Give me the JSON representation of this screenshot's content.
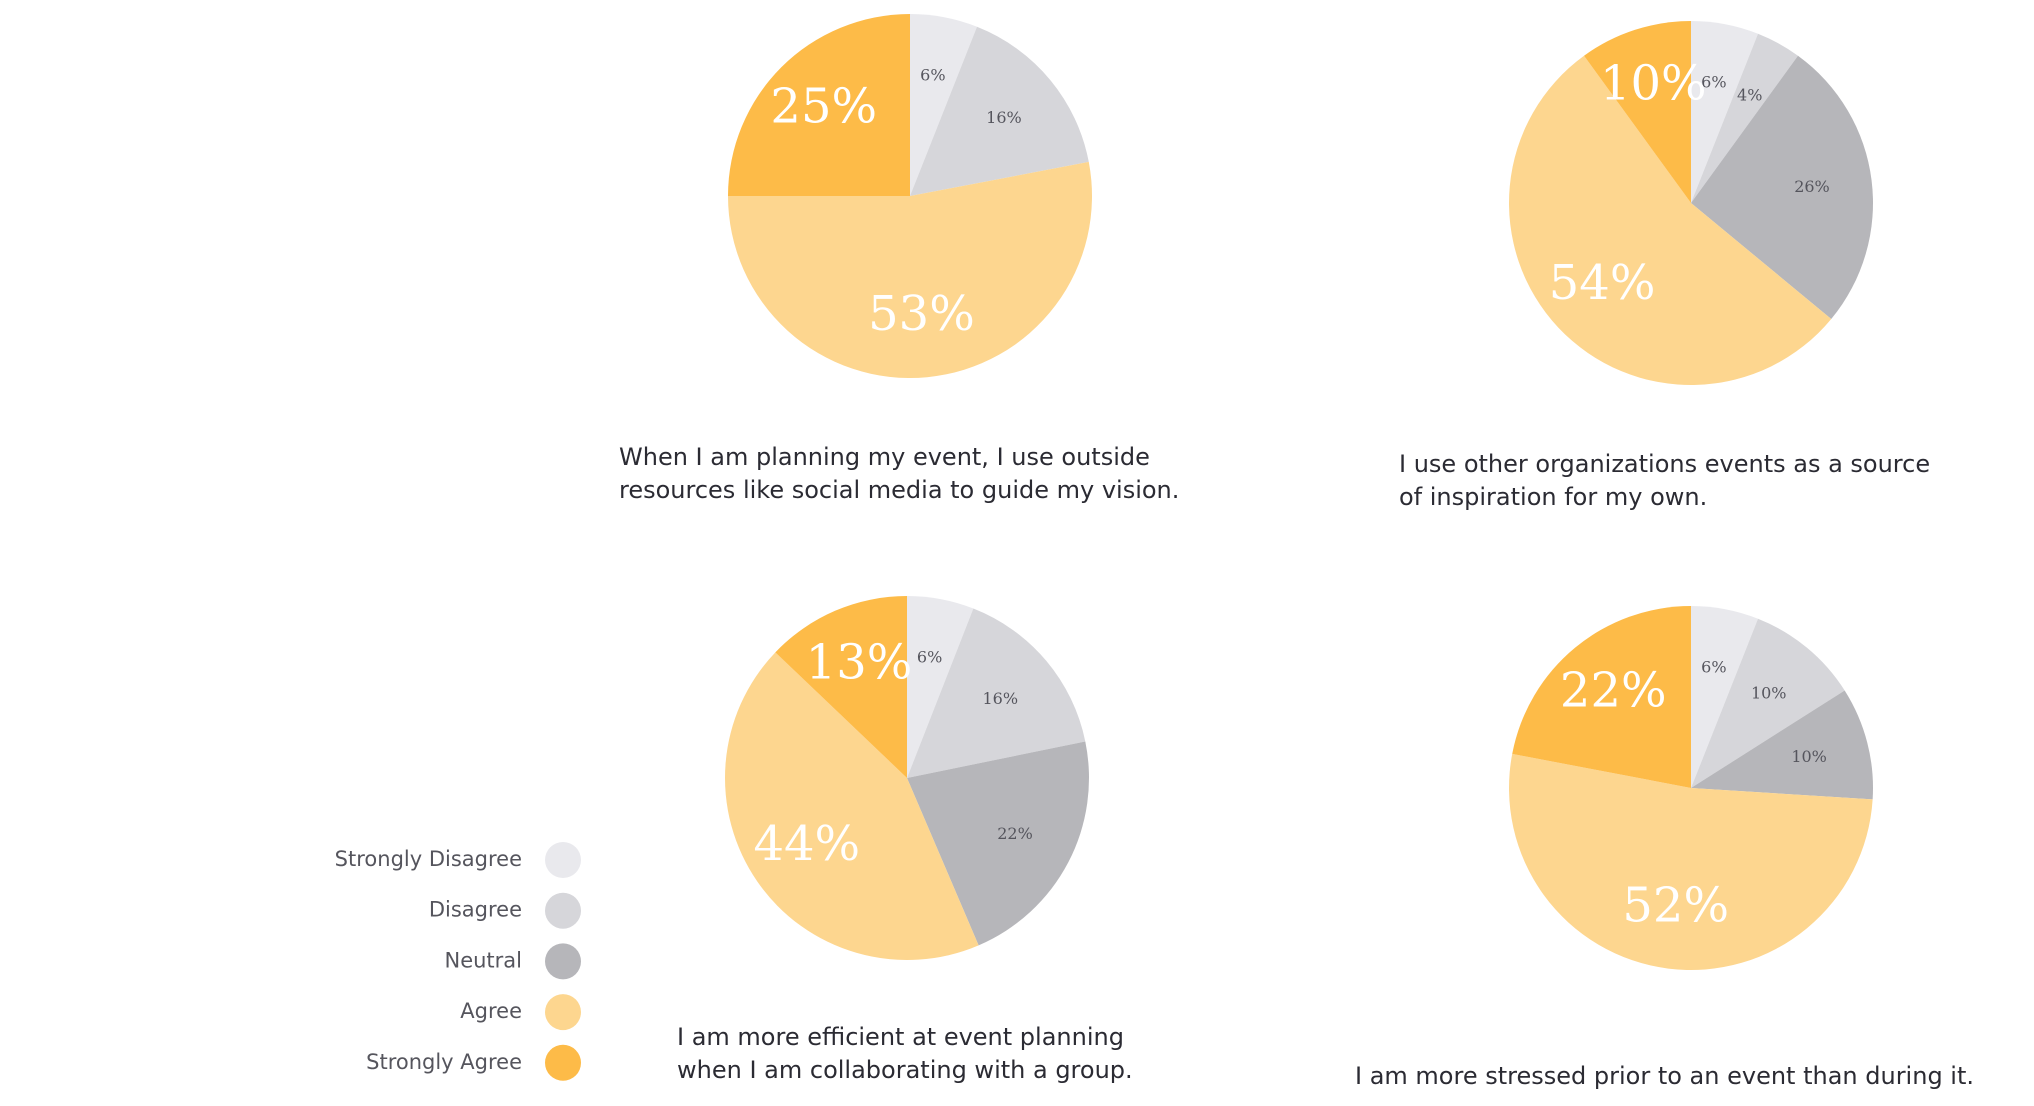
{
  "chart_data": [
    {
      "type": "pie",
      "title": [
        "When I am planning my event, I use outside",
        "resources like social media to guide my vision."
      ],
      "values": [
        6,
        16,
        null,
        53,
        25
      ],
      "value_labels": [
        "6%",
        "16%",
        null,
        "53%",
        "25%"
      ]
    },
    {
      "type": "pie",
      "title": [
        "I use other organizations events as a source",
        "of inspiration for my own."
      ],
      "values": [
        6,
        4,
        26,
        54,
        10
      ],
      "value_labels": [
        "6%",
        "4%",
        "26%",
        "54%",
        "10%"
      ]
    },
    {
      "type": "pie",
      "title": [
        "I am more efficient at event planning",
        "when I am collaborating with a group."
      ],
      "values": [
        6,
        16,
        22,
        44,
        13
      ],
      "value_labels": [
        "6%",
        "16%",
        "22%",
        "44%",
        "13%"
      ]
    },
    {
      "type": "pie",
      "title": [
        "I am more stressed prior to an event than during it."
      ],
      "values": [
        6,
        10,
        10,
        52,
        22
      ],
      "value_labels": [
        "6%",
        "10%",
        "10%",
        "52%",
        "22%"
      ]
    }
  ],
  "legend": {
    "labels": [
      "Strongly Disagree",
      "Disagree",
      "Neutral",
      "Agree",
      "Strongly Agree"
    ],
    "colors": [
      "#e9e9ed",
      "#d6d6da",
      "#b6b6ba",
      "#fdd68f",
      "#fdbb48"
    ]
  }
}
